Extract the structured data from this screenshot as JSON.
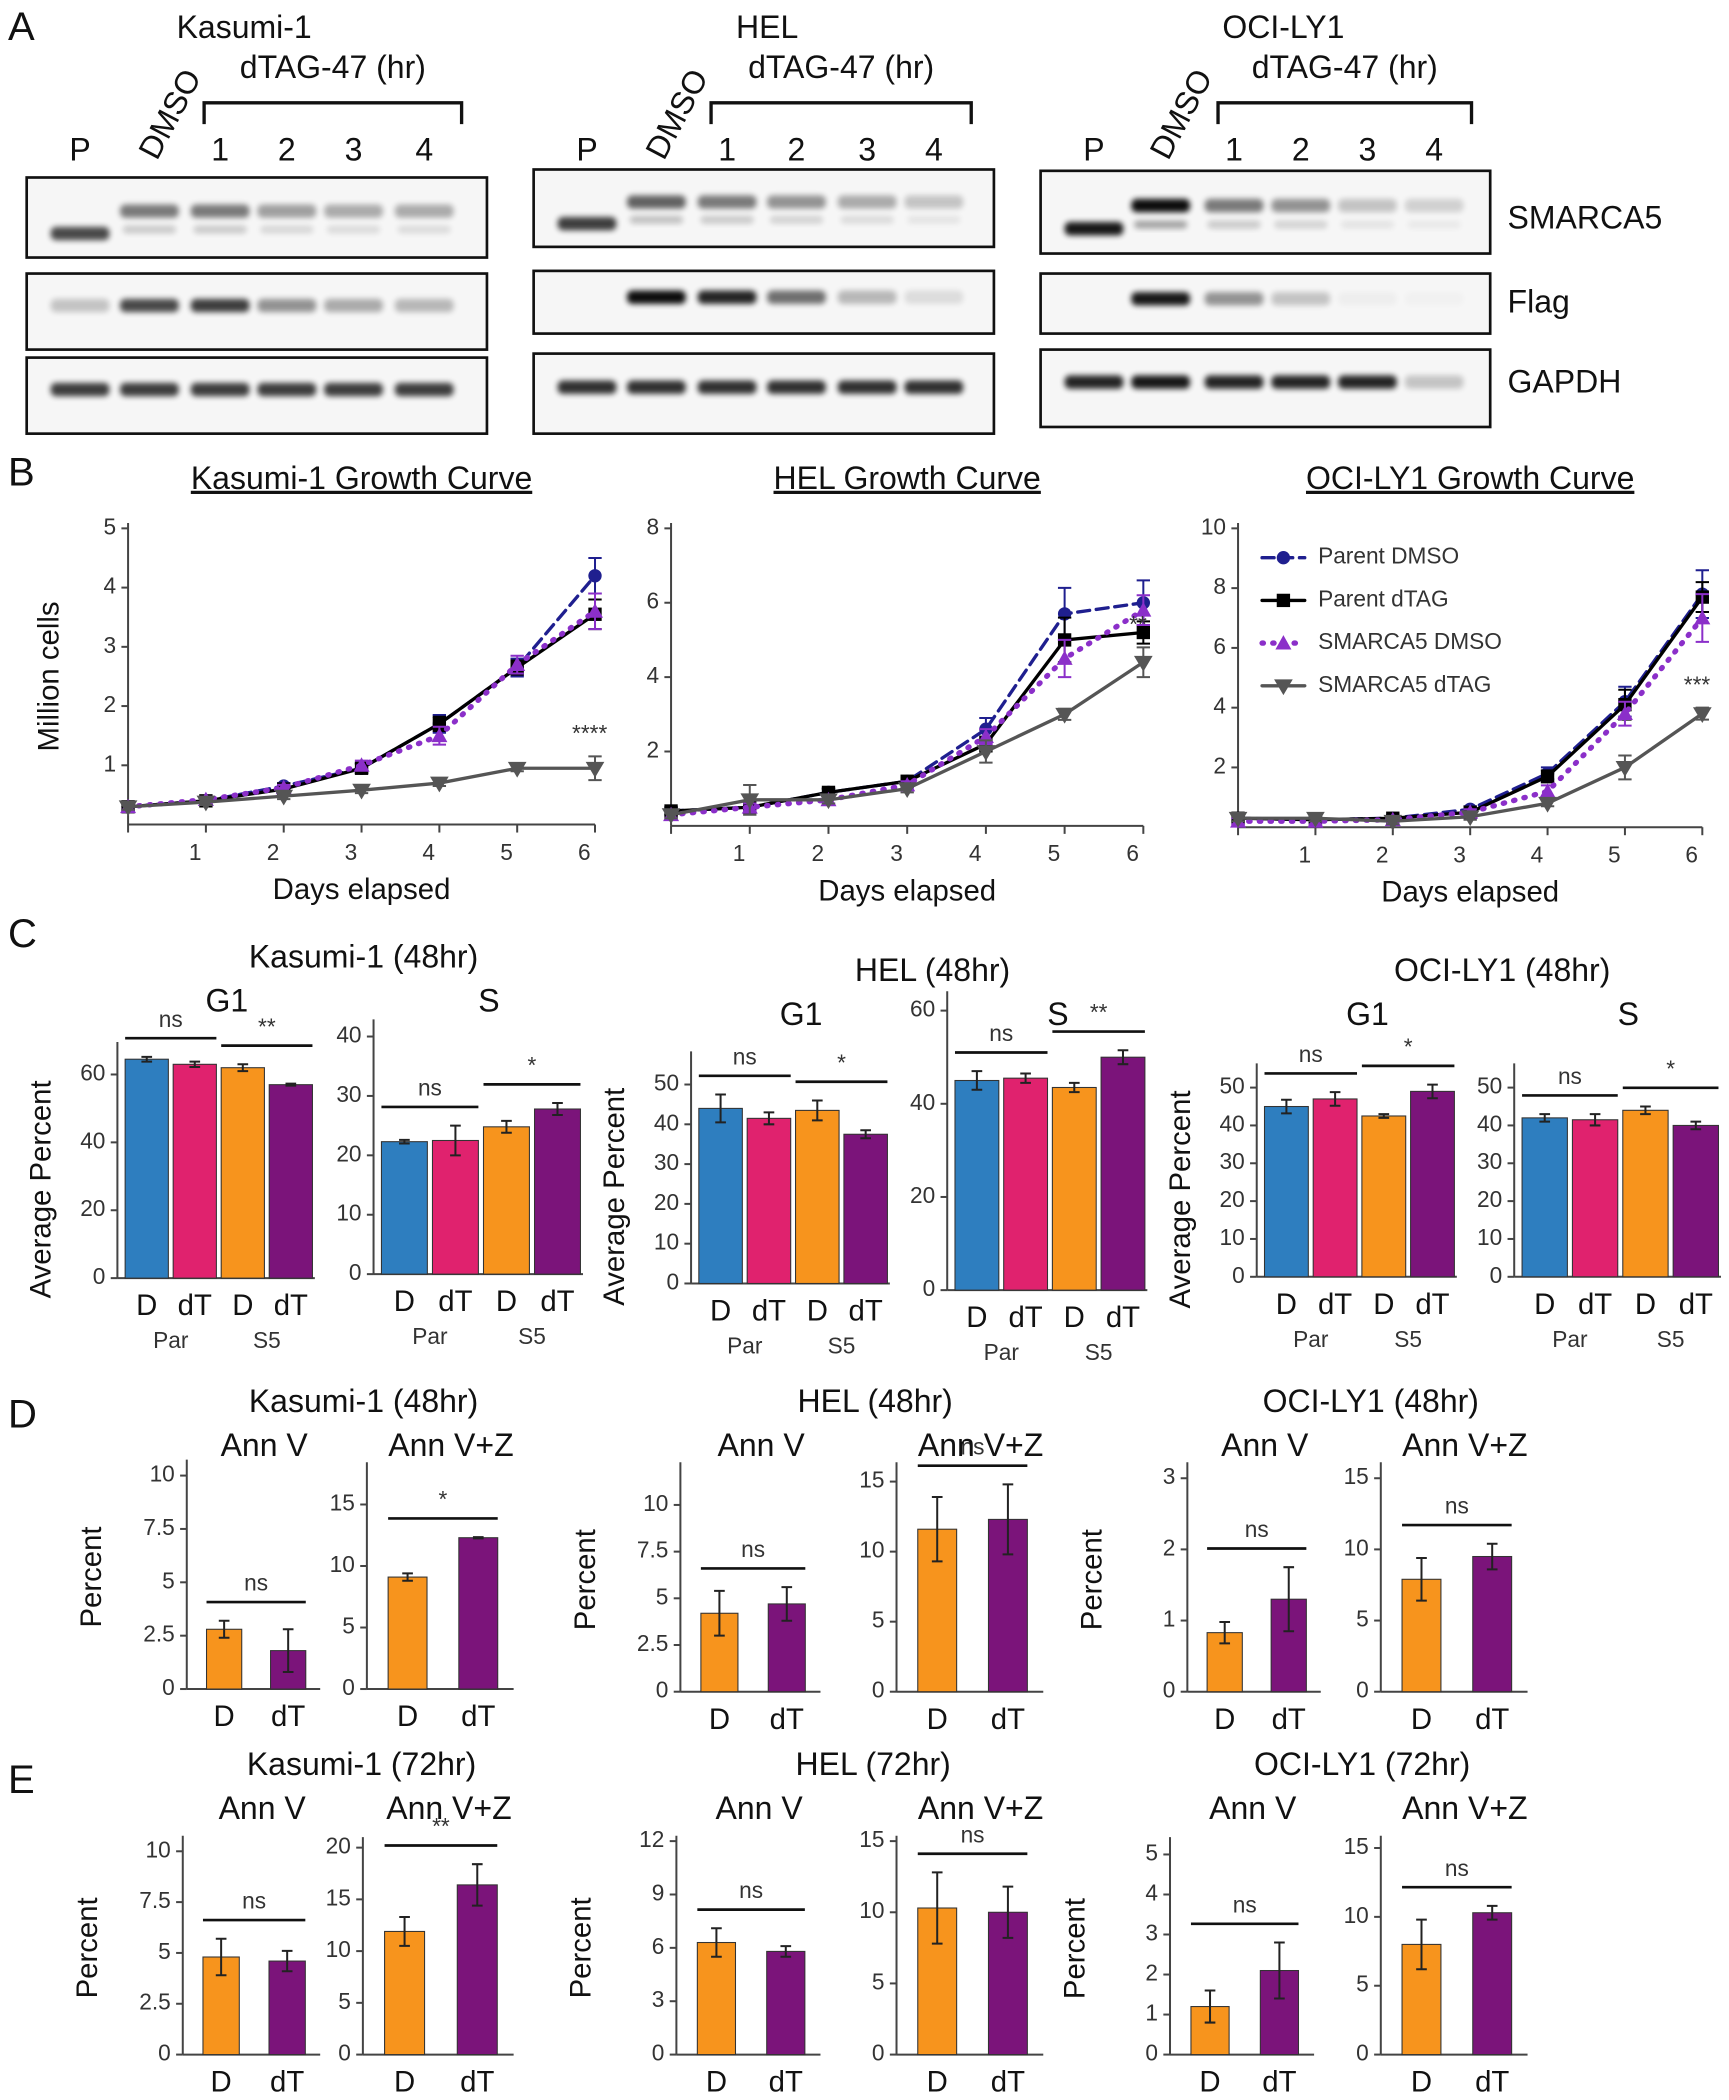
{
  "panel_letters": [
    "A",
    "B",
    "C",
    "D",
    "E"
  ],
  "blot_rows": [
    "SMARCA5",
    "Flag",
    "GAPDH"
  ],
  "blots": [
    {
      "title": "Kasumi-1",
      "treatment": "dTAG-47 (hr)",
      "lanes": [
        "P",
        "DMSO",
        "1",
        "2",
        "3",
        "4"
      ]
    },
    {
      "title": "HEL",
      "treatment": "dTAG-47 (hr)",
      "lanes": [
        "P",
        "DMSO",
        "1",
        "2",
        "3",
        "4"
      ]
    },
    {
      "title": "OCI-LY1",
      "treatment": "dTAG-47 (hr)",
      "lanes": [
        "P",
        "DMSO",
        "1",
        "2",
        "3",
        "4"
      ]
    }
  ],
  "chart_data": [
    {
      "type": "line",
      "title": "Kasumi-1 Growth Curve",
      "xlabel": "Days elapsed",
      "ylabel": "Million cells",
      "x": [
        0,
        1,
        2,
        3,
        4,
        5,
        6
      ],
      "xlim": [
        0,
        6
      ],
      "xticks": [
        1,
        2,
        3,
        4,
        5,
        6
      ],
      "ylim": [
        0,
        5
      ],
      "yticks": [
        1,
        2,
        3,
        4,
        5
      ],
      "annotation": "****",
      "series": [
        {
          "name": "Parent DMSO",
          "color": "#1f1f8f",
          "style": "dashed",
          "marker": "circle",
          "values": [
            0.3,
            0.4,
            0.65,
            0.95,
            1.7,
            2.65,
            4.2
          ],
          "errors": [
            0.05,
            0.05,
            0.05,
            0.08,
            0.15,
            0.15,
            0.3
          ]
        },
        {
          "name": "Parent dTAG",
          "color": "#000000",
          "style": "solid",
          "marker": "square",
          "values": [
            0.3,
            0.4,
            0.6,
            0.95,
            1.7,
            2.65,
            3.55
          ],
          "errors": [
            0.05,
            0.05,
            0.05,
            0.08,
            0.12,
            0.12,
            0.25
          ]
        },
        {
          "name": "SMARCA5 DMSO",
          "color": "#8b2fc9",
          "style": "dotted",
          "marker": "triangle-up",
          "values": [
            0.3,
            0.42,
            0.62,
            1.0,
            1.5,
            2.7,
            3.6
          ],
          "errors": [
            0.05,
            0.05,
            0.05,
            0.08,
            0.15,
            0.15,
            0.3
          ]
        },
        {
          "name": "SMARCA5 dTAG",
          "color": "#555555",
          "style": "solid",
          "marker": "triangle-down",
          "values": [
            0.3,
            0.38,
            0.48,
            0.58,
            0.7,
            0.95,
            0.95
          ],
          "errors": [
            0.05,
            0.05,
            0.05,
            0.05,
            0.05,
            0.05,
            0.2
          ]
        }
      ]
    },
    {
      "type": "line",
      "title": "HEL Growth Curve",
      "xlabel": "Days elapsed",
      "x": [
        0,
        1,
        2,
        3,
        4,
        5,
        6
      ],
      "xlim": [
        0,
        6
      ],
      "xticks": [
        1,
        2,
        3,
        4,
        5,
        6
      ],
      "ylim": [
        0,
        8
      ],
      "yticks": [
        2,
        4,
        6,
        8
      ],
      "annotation": "**",
      "series": [
        {
          "name": "Parent DMSO",
          "color": "#1f1f8f",
          "style": "dashed",
          "marker": "circle",
          "values": [
            0.4,
            0.5,
            0.9,
            1.2,
            2.6,
            5.7,
            6.0
          ],
          "errors": [
            0.1,
            0.1,
            0.1,
            0.1,
            0.3,
            0.7,
            0.6
          ]
        },
        {
          "name": "Parent dTAG",
          "color": "#000000",
          "style": "solid",
          "marker": "square",
          "values": [
            0.4,
            0.5,
            0.9,
            1.2,
            2.2,
            5.0,
            5.2
          ],
          "errors": [
            0.1,
            0.1,
            0.1,
            0.1,
            0.2,
            0.6,
            0.3
          ]
        },
        {
          "name": "SMARCA5 DMSO",
          "color": "#8b2fc9",
          "style": "dotted",
          "marker": "triangle-up",
          "values": [
            0.3,
            0.5,
            0.7,
            1.1,
            2.4,
            4.5,
            5.8
          ],
          "errors": [
            0.1,
            0.1,
            0.1,
            0.1,
            0.2,
            0.5,
            0.4
          ]
        },
        {
          "name": "SMARCA5 dTAG",
          "color": "#555555",
          "style": "solid",
          "marker": "triangle-down",
          "values": [
            0.3,
            0.7,
            0.7,
            1.0,
            2.0,
            3.0,
            4.4
          ],
          "errors": [
            0.1,
            0.4,
            0.1,
            0.1,
            0.3,
            0.15,
            0.4
          ]
        }
      ]
    },
    {
      "type": "line",
      "title": "OCI-LY1 Growth Curve",
      "xlabel": "Days elapsed",
      "legend": "upper left",
      "x": [
        0,
        1,
        2,
        3,
        4,
        5,
        6
      ],
      "xlim": [
        0,
        6
      ],
      "xticks": [
        1,
        2,
        3,
        4,
        5,
        6
      ],
      "ylim": [
        0,
        10
      ],
      "yticks": [
        2,
        4,
        6,
        8,
        10
      ],
      "annotation": "***",
      "series": [
        {
          "name": "Parent DMSO",
          "color": "#1f1f8f",
          "style": "dashed",
          "marker": "circle",
          "values": [
            0.3,
            0.25,
            0.3,
            0.6,
            1.8,
            4.2,
            7.8
          ],
          "errors": [
            0.1,
            0.1,
            0.1,
            0.1,
            0.2,
            0.5,
            0.8
          ]
        },
        {
          "name": "Parent dTAG",
          "color": "#000000",
          "style": "solid",
          "marker": "square",
          "values": [
            0.3,
            0.25,
            0.3,
            0.5,
            1.7,
            4.1,
            7.7
          ],
          "errors": [
            0.1,
            0.1,
            0.1,
            0.1,
            0.2,
            0.5,
            0.5
          ]
        },
        {
          "name": "SMARCA5 DMSO",
          "color": "#8b2fc9",
          "style": "dotted",
          "marker": "triangle-up",
          "values": [
            0.2,
            0.2,
            0.25,
            0.5,
            1.2,
            3.8,
            7.0
          ],
          "errors": [
            0.1,
            0.1,
            0.1,
            0.1,
            0.2,
            0.4,
            0.8
          ]
        },
        {
          "name": "SMARCA5 dTAG",
          "color": "#555555",
          "style": "solid",
          "marker": "triangle-down",
          "values": [
            0.3,
            0.3,
            0.2,
            0.35,
            0.8,
            2.0,
            3.8
          ],
          "errors": [
            0.1,
            0.1,
            0.1,
            0.1,
            0.1,
            0.4,
            0.2
          ]
        }
      ]
    },
    {
      "type": "bar",
      "panel_title": "Kasumi-1 (48hr)",
      "title": "G1",
      "ylabel": "Average Percent",
      "categories": [
        "D",
        "dT",
        "D",
        "dT"
      ],
      "groups": [
        "Par",
        "S5"
      ],
      "colors": [
        "#2e7ebf",
        "#e0226e",
        "#f7941d",
        "#7b147a"
      ],
      "values": [
        64.5,
        63,
        62,
        57
      ],
      "errors": [
        0.7,
        0.8,
        1,
        0.3
      ],
      "ylim": [
        0,
        68
      ],
      "yticks": [
        0,
        20,
        40,
        60
      ],
      "significance": [
        "ns",
        "**"
      ]
    },
    {
      "type": "bar",
      "title": "S",
      "categories": [
        "D",
        "dT",
        "D",
        "dT"
      ],
      "groups": [
        "Par",
        "S5"
      ],
      "colors": [
        "#2e7ebf",
        "#e0226e",
        "#f7941d",
        "#7b147a"
      ],
      "values": [
        22.3,
        22.5,
        24.8,
        27.8
      ],
      "errors": [
        0.3,
        2.5,
        1,
        1
      ],
      "ylim": [
        0,
        42
      ],
      "yticks": [
        0,
        10,
        20,
        30,
        40
      ],
      "significance": [
        "ns",
        "*"
      ]
    },
    {
      "type": "bar",
      "panel_title": "HEL (48hr)",
      "title": "G1",
      "ylabel": "Average Percent",
      "categories": [
        "D",
        "dT",
        "D",
        "dT"
      ],
      "groups": [
        "Par",
        "S5"
      ],
      "colors": [
        "#2e7ebf",
        "#e0226e",
        "#f7941d",
        "#7b147a"
      ],
      "values": [
        44,
        41.5,
        43.5,
        37.5
      ],
      "errors": [
        3.5,
        1.5,
        2.5,
        1
      ],
      "ylim": [
        0,
        57
      ],
      "yticks": [
        0,
        10,
        20,
        30,
        40,
        50
      ],
      "significance": [
        "ns",
        "*"
      ]
    },
    {
      "type": "bar",
      "title": "S",
      "categories": [
        "D",
        "dT",
        "D",
        "dT"
      ],
      "groups": [
        "Par",
        "S5"
      ],
      "colors": [
        "#2e7ebf",
        "#e0226e",
        "#f7941d",
        "#7b147a"
      ],
      "values": [
        45,
        45.5,
        43.5,
        50
      ],
      "errors": [
        2,
        1,
        1,
        1.5
      ],
      "ylim": [
        0,
        63
      ],
      "yticks": [
        0,
        20,
        40,
        60
      ],
      "significance": [
        "ns",
        "**"
      ]
    },
    {
      "type": "bar",
      "panel_title": "OCI-LY1 (48hr)",
      "title": "G1",
      "ylabel": "Average Percent",
      "categories": [
        "D",
        "dT",
        "D",
        "dT"
      ],
      "groups": [
        "Par",
        "S5"
      ],
      "colors": [
        "#2e7ebf",
        "#e0226e",
        "#f7941d",
        "#7b147a"
      ],
      "values": [
        45,
        47,
        42.5,
        49
      ],
      "errors": [
        1.8,
        1.8,
        0.5,
        1.8
      ],
      "ylim": [
        0,
        55
      ],
      "yticks": [
        0,
        10,
        20,
        30,
        40,
        50
      ],
      "significance": [
        "ns",
        "*"
      ]
    },
    {
      "type": "bar",
      "title": "S",
      "categories": [
        "D",
        "dT",
        "D",
        "dT"
      ],
      "groups": [
        "Par",
        "S5"
      ],
      "colors": [
        "#2e7ebf",
        "#e0226e",
        "#f7941d",
        "#7b147a"
      ],
      "values": [
        42,
        41.5,
        44,
        40
      ],
      "errors": [
        1,
        1.5,
        1,
        1
      ],
      "ylim": [
        0,
        55
      ],
      "yticks": [
        0,
        10,
        20,
        30,
        40,
        50
      ],
      "significance": [
        "ns",
        "*"
      ]
    },
    {
      "type": "bar",
      "panel_title": "Kasumi-1 (48hr)",
      "title": "Ann V",
      "ylabel": "Percent",
      "categories": [
        "D",
        "dT"
      ],
      "colors": [
        "#f7941d",
        "#7b147a"
      ],
      "values": [
        2.8,
        1.8
      ],
      "errors": [
        0.4,
        1.0
      ],
      "ylim": [
        0,
        10.5
      ],
      "yticks": [
        0,
        2.5,
        5,
        7.5,
        10
      ],
      "significance": [
        "ns"
      ]
    },
    {
      "type": "bar",
      "title": "Ann V+Z",
      "categories": [
        "D",
        "dT"
      ],
      "colors": [
        "#f7941d",
        "#7b147a"
      ],
      "values": [
        9.1,
        12.3
      ],
      "errors": [
        0.3,
        0.05
      ],
      "ylim": [
        0,
        18
      ],
      "yticks": [
        0,
        5,
        10,
        15
      ],
      "significance": [
        "*"
      ]
    },
    {
      "type": "bar",
      "panel_title": "HEL (48hr)",
      "title": "Ann V",
      "ylabel": "Percent",
      "categories": [
        "D",
        "dT"
      ],
      "colors": [
        "#f7941d",
        "#7b147a"
      ],
      "values": [
        4.2,
        4.7
      ],
      "errors": [
        1.2,
        0.9
      ],
      "ylim": [
        0,
        12
      ],
      "yticks": [
        0,
        2.5,
        5,
        7.5,
        10
      ],
      "significance": [
        "ns"
      ]
    },
    {
      "type": "bar",
      "title": "Ann V+Z",
      "categories": [
        "D",
        "dT"
      ],
      "colors": [
        "#f7941d",
        "#7b147a"
      ],
      "values": [
        11.6,
        12.3
      ],
      "errors": [
        2.3,
        2.5
      ],
      "ylim": [
        0,
        16
      ],
      "yticks": [
        0,
        5,
        10,
        15
      ],
      "significance": [
        "ns"
      ]
    },
    {
      "type": "bar",
      "panel_title": "OCI-LY1 (48hr)",
      "title": "Ann V",
      "ylabel": "Percent",
      "categories": [
        "D",
        "dT"
      ],
      "colors": [
        "#f7941d",
        "#7b147a"
      ],
      "values": [
        0.83,
        1.3
      ],
      "errors": [
        0.15,
        0.45
      ],
      "ylim": [
        0,
        3.15
      ],
      "yticks": [
        0,
        1,
        2,
        3
      ],
      "significance": [
        "ns"
      ]
    },
    {
      "type": "bar",
      "title": "Ann V+Z",
      "categories": [
        "D",
        "dT"
      ],
      "colors": [
        "#f7941d",
        "#7b147a"
      ],
      "values": [
        7.9,
        9.5
      ],
      "errors": [
        1.5,
        0.9
      ],
      "ylim": [
        0,
        15.75
      ],
      "yticks": [
        0,
        5,
        10,
        15
      ],
      "significance": [
        "ns"
      ]
    },
    {
      "type": "bar",
      "panel_title": "Kasumi-1 (72hr)",
      "title": "Ann V",
      "ylabel": "Percent",
      "categories": [
        "D",
        "dT"
      ],
      "colors": [
        "#f7941d",
        "#7b147a"
      ],
      "values": [
        4.8,
        4.6
      ],
      "errors": [
        0.9,
        0.5
      ],
      "ylim": [
        0,
        10.5
      ],
      "yticks": [
        0,
        2.5,
        5,
        7.5,
        10
      ],
      "significance": [
        "ns"
      ]
    },
    {
      "type": "bar",
      "title": "Ann V+Z",
      "categories": [
        "D",
        "dT"
      ],
      "colors": [
        "#f7941d",
        "#7b147a"
      ],
      "values": [
        11.9,
        16.4
      ],
      "errors": [
        1.4,
        2
      ],
      "ylim": [
        0,
        20.5
      ],
      "yticks": [
        0,
        5,
        10,
        15,
        20
      ],
      "significance": [
        "**"
      ]
    },
    {
      "type": "bar",
      "panel_title": "HEL (72hr)",
      "title": "Ann V",
      "ylabel": "Percent",
      "categories": [
        "D",
        "dT"
      ],
      "colors": [
        "#f7941d",
        "#7b147a"
      ],
      "values": [
        6.3,
        5.8
      ],
      "errors": [
        0.8,
        0.3
      ],
      "ylim": [
        0,
        12
      ],
      "yticks": [
        0,
        3,
        6,
        9,
        12
      ],
      "significance": [
        "ns"
      ]
    },
    {
      "type": "bar",
      "title": "Ann V+Z",
      "categories": [
        "D",
        "dT"
      ],
      "colors": [
        "#f7941d",
        "#7b147a"
      ],
      "values": [
        10.3,
        10.0
      ],
      "errors": [
        2.5,
        1.8
      ],
      "ylim": [
        0,
        15
      ],
      "yticks": [
        0,
        5,
        10,
        15
      ],
      "significance": [
        "ns"
      ]
    },
    {
      "type": "bar",
      "panel_title": "OCI-LY1 (72hr)",
      "title": "Ann V",
      "ylabel": "Percent",
      "categories": [
        "D",
        "dT"
      ],
      "colors": [
        "#f7941d",
        "#7b147a"
      ],
      "values": [
        1.2,
        2.1
      ],
      "errors": [
        0.4,
        0.7
      ],
      "ylim": [
        0,
        5.3
      ],
      "yticks": [
        0,
        1,
        2,
        3,
        4,
        5
      ],
      "significance": [
        "ns"
      ]
    },
    {
      "type": "bar",
      "title": "Ann V+Z",
      "categories": [
        "D",
        "dT"
      ],
      "colors": [
        "#f7941d",
        "#7b147a"
      ],
      "values": [
        8,
        10.3
      ],
      "errors": [
        1.8,
        0.5
      ],
      "ylim": [
        0,
        15.5
      ],
      "yticks": [
        0,
        5,
        10,
        15
      ],
      "significance": [
        "ns"
      ]
    }
  ]
}
